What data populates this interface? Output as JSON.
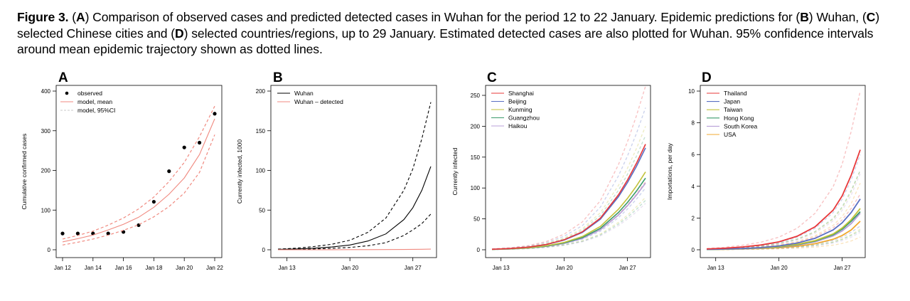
{
  "caption": {
    "figure_label": "Figure 3.",
    "segments": [
      {
        "t": " (",
        "b": false
      },
      {
        "t": "A",
        "b": true
      },
      {
        "t": ") Comparison of observed cases and predicted detected cases in Wuhan for the period 12 to 22 January. Epidemic predictions for (",
        "b": false
      },
      {
        "t": "B",
        "b": true
      },
      {
        "t": ") Wuhan, (",
        "b": false
      },
      {
        "t": "C",
        "b": true
      },
      {
        "t": ") selected Chinese cities and (",
        "b": false
      },
      {
        "t": "D",
        "b": true
      },
      {
        "t": ") selected countries/regions, up to 29 January. Estimated detected cases are also plotted for Wuhan. 95% confidence intervals around mean epidemic trajectory shown as dotted lines.",
        "b": false
      }
    ]
  },
  "chart_data": [
    {
      "panel": "A",
      "type": "scatter",
      "title": "",
      "xlabel": "",
      "ylabel": "Cumulative confirmed cases",
      "x_tick_labels": [
        "Jan 12",
        "Jan 14",
        "Jan 16",
        "Jan 18",
        "Jan 20",
        "Jan 22"
      ],
      "x_tick_values": [
        12,
        14,
        16,
        18,
        20,
        22
      ],
      "y_ticks": [
        0,
        100,
        200,
        300,
        400
      ],
      "xlim": [
        12,
        22
      ],
      "ylim": [
        0,
        400
      ],
      "legend": {
        "position": "top-left",
        "entries": [
          "observed",
          "model, mean",
          "model, 95%CI"
        ]
      },
      "series": [
        {
          "name": "observed",
          "kind": "points",
          "color": "#000000",
          "x": [
            12,
            13,
            14,
            15,
            16,
            17,
            18,
            19,
            20,
            21,
            22
          ],
          "y": [
            41,
            41,
            41,
            41,
            45,
            62,
            121,
            198,
            258,
            270,
            343
          ]
        },
        {
          "name": "model, mean",
          "kind": "line",
          "color": "#f08a80",
          "x": [
            12,
            13,
            14,
            15,
            16,
            17,
            18,
            19,
            20,
            21,
            22
          ],
          "y": [
            20,
            28,
            37,
            50,
            64,
            82,
            107,
            140,
            181,
            240,
            330
          ]
        },
        {
          "name": "model, 95%CI",
          "kind": "dashed",
          "color": "#f08a80",
          "x": [
            12,
            13,
            14,
            15,
            16,
            17,
            18,
            19,
            20,
            21,
            22
          ],
          "y": [
            27,
            36,
            47,
            62,
            80,
            103,
            133,
            172,
            220,
            285,
            362
          ]
        },
        {
          "name": "",
          "kind": "dashed",
          "color": "#f08a80",
          "x": [
            12,
            13,
            14,
            15,
            16,
            17,
            18,
            19,
            20,
            21,
            22
          ],
          "y": [
            12,
            19,
            27,
            37,
            49,
            63,
            83,
            109,
            143,
            195,
            290
          ]
        }
      ]
    },
    {
      "panel": "B",
      "type": "line",
      "title": "",
      "xlabel": "",
      "ylabel": "Currently infected, 1000",
      "x_tick_labels": [
        "Jan 13",
        "Jan 20",
        "Jan 27"
      ],
      "x_tick_values": [
        13,
        20,
        27
      ],
      "y_ticks": [
        0,
        50,
        100,
        150,
        200
      ],
      "xlim": [
        12,
        29
      ],
      "ylim": [
        0,
        200
      ],
      "legend": {
        "position": "top-left",
        "entries": [
          "Wuhan",
          "Wuhan – detected"
        ]
      },
      "series": [
        {
          "name": "Wuhan",
          "kind": "line",
          "color": "#000000",
          "x": [
            12,
            14,
            16,
            18,
            20,
            22,
            24,
            26,
            27,
            28,
            29
          ],
          "y": [
            0.5,
            1,
            2,
            3.5,
            6,
            11,
            20,
            38,
            53,
            75,
            105
          ]
        },
        {
          "name": "",
          "kind": "dashed",
          "color": "#000000",
          "x": [
            12,
            14,
            16,
            18,
            20,
            22,
            24,
            26,
            27,
            28,
            29
          ],
          "y": [
            0.8,
            2,
            4,
            7,
            12,
            22,
            40,
            75,
            102,
            140,
            186
          ]
        },
        {
          "name": "",
          "kind": "dashed",
          "color": "#000000",
          "x": [
            12,
            14,
            16,
            18,
            20,
            22,
            24,
            26,
            27,
            28,
            29
          ],
          "y": [
            0.3,
            0.6,
            1,
            1.8,
            3,
            5,
            9,
            18,
            25,
            33,
            45
          ]
        },
        {
          "name": "Wuhan – detected",
          "kind": "line",
          "color": "#f08a80",
          "x": [
            12,
            14,
            16,
            18,
            20,
            22,
            24,
            26,
            27,
            28,
            29
          ],
          "y": [
            0.1,
            0.1,
            0.1,
            0.1,
            0.2,
            0.2,
            0.3,
            0.4,
            0.5,
            0.6,
            0.8
          ]
        }
      ]
    },
    {
      "panel": "C",
      "type": "line",
      "title": "",
      "xlabel": "",
      "ylabel": "Currently infected",
      "x_tick_labels": [
        "Jan 13",
        "Jan 20",
        "Jan 27"
      ],
      "x_tick_values": [
        13,
        20,
        27
      ],
      "y_ticks": [
        0,
        50,
        100,
        150,
        200,
        250
      ],
      "xlim": [
        12,
        29
      ],
      "ylim": [
        0,
        250
      ],
      "legend": {
        "position": "top-left",
        "entries": [
          "Shanghai",
          "Beijing",
          "Kunming",
          "Guangzhou",
          "Haikou"
        ]
      },
      "series": [
        {
          "name": "Shanghai",
          "color": "#e8383a",
          "kind": "line",
          "scale": 171
        },
        {
          "name": "Beijing",
          "color": "#5a6fc2",
          "kind": "line",
          "scale": 165
        },
        {
          "name": "Kunming",
          "color": "#c2c23a",
          "kind": "line",
          "scale": 126
        },
        {
          "name": "Guangzhou",
          "color": "#3a9a6a",
          "kind": "line",
          "scale": 116
        },
        {
          "name": "Haikou",
          "color": "#b8a0d8",
          "kind": "line",
          "scale": 108
        }
      ],
      "x": [
        12,
        14,
        16,
        18,
        20,
        22,
        24,
        26,
        27,
        28,
        29
      ],
      "shape": [
        0.005,
        0.012,
        0.025,
        0.05,
        0.095,
        0.17,
        0.3,
        0.52,
        0.66,
        0.82,
        1.0
      ],
      "ci_upper_end": [
        265,
        230,
        200,
        185,
        170
      ],
      "ci_lower_end": [
        110,
        100,
        85,
        80,
        75
      ]
    },
    {
      "panel": "D",
      "type": "line",
      "title": "",
      "xlabel": "",
      "ylabel": "Importations, per day",
      "x_tick_labels": [
        "Jan 13",
        "Jan 20",
        "Jan 27"
      ],
      "x_tick_values": [
        13,
        20,
        27
      ],
      "y_ticks": [
        0,
        2,
        4,
        6,
        8,
        10
      ],
      "xlim": [
        12,
        29
      ],
      "ylim": [
        0,
        10
      ],
      "legend": {
        "position": "top-left",
        "entries": [
          "Thailand",
          "Japan",
          "Taiwan",
          "Hong Kong",
          "South Korea",
          "USA"
        ]
      },
      "series": [
        {
          "name": "Thailand",
          "color": "#e8383a",
          "kind": "line",
          "y": [
            0.05,
            0.1,
            0.18,
            0.3,
            0.5,
            0.85,
            1.45,
            2.5,
            3.4,
            4.7,
            6.3
          ]
        },
        {
          "name": "Japan",
          "color": "#5a6fc2",
          "kind": "line",
          "y": [
            0.03,
            0.05,
            0.08,
            0.14,
            0.24,
            0.42,
            0.72,
            1.25,
            1.7,
            2.35,
            3.2
          ]
        },
        {
          "name": "Taiwan",
          "color": "#c2c23a",
          "kind": "line",
          "y": [
            0.03,
            0.04,
            0.07,
            0.12,
            0.2,
            0.34,
            0.58,
            1.0,
            1.37,
            1.9,
            2.6
          ]
        },
        {
          "name": "Hong Kong",
          "color": "#3a9a6a",
          "kind": "line",
          "y": [
            0.02,
            0.04,
            0.07,
            0.11,
            0.19,
            0.32,
            0.55,
            0.95,
            1.3,
            1.8,
            2.4
          ]
        },
        {
          "name": "South Korea",
          "color": "#b8a0d8",
          "kind": "line",
          "y": [
            0.02,
            0.04,
            0.06,
            0.1,
            0.17,
            0.29,
            0.5,
            0.87,
            1.19,
            1.65,
            2.3
          ]
        },
        {
          "name": "USA",
          "color": "#f0a830",
          "kind": "line",
          "y": [
            0.02,
            0.03,
            0.05,
            0.08,
            0.13,
            0.22,
            0.38,
            0.66,
            0.9,
            1.25,
            1.8
          ]
        }
      ],
      "x": [
        12,
        14,
        16,
        18,
        20,
        22,
        24,
        26,
        27,
        28,
        29
      ],
      "ci_upper_end": [
        10,
        6,
        5,
        5,
        4.8,
        4.2
      ],
      "ci_lower_end": [
        3.5,
        1.5,
        1.3,
        1.2,
        1.1,
        0.8
      ]
    }
  ]
}
